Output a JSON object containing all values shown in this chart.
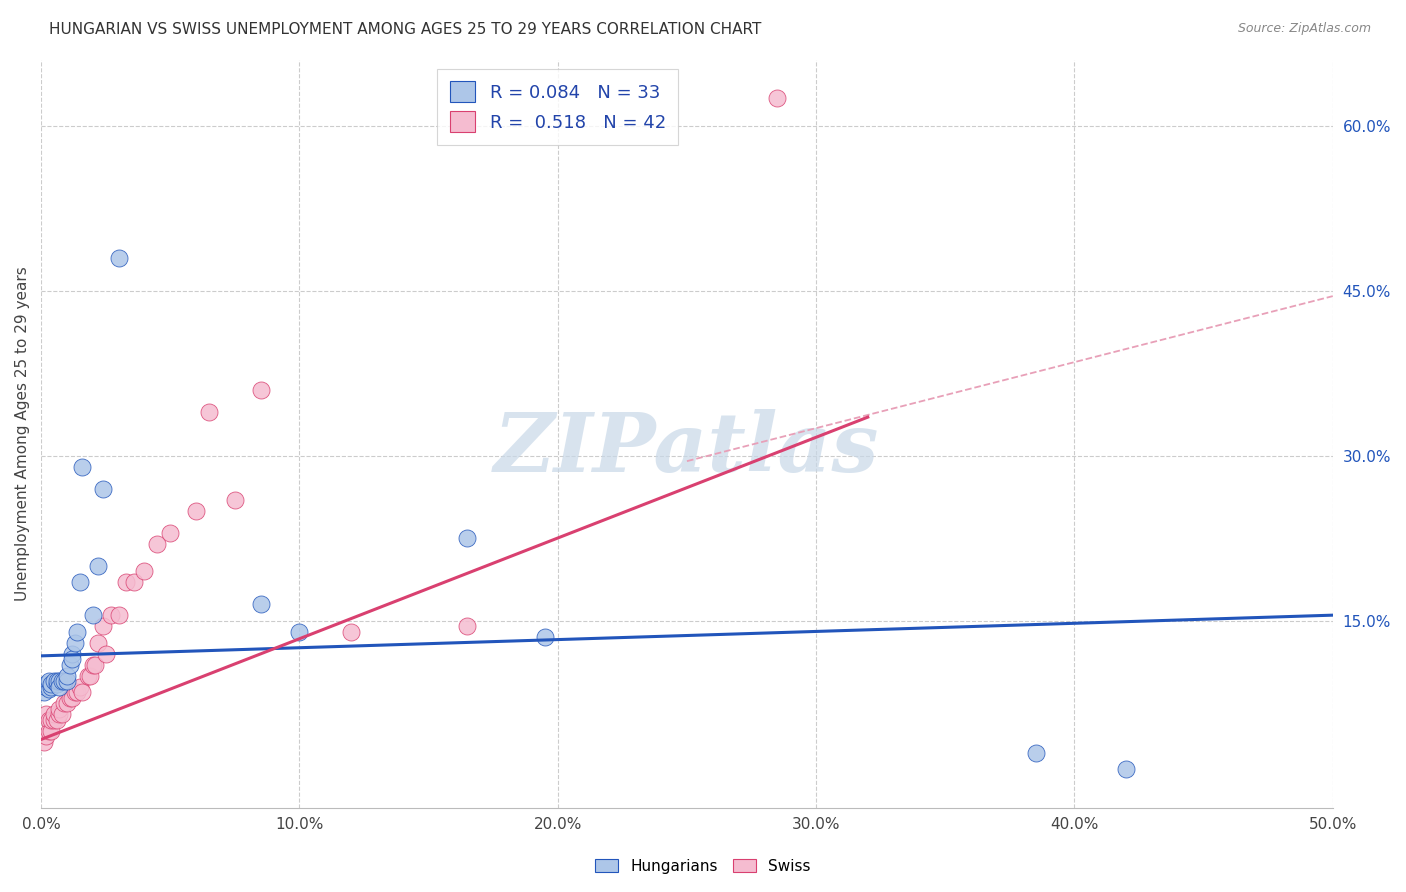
{
  "title": "HUNGARIAN VS SWISS UNEMPLOYMENT AMONG AGES 25 TO 29 YEARS CORRELATION CHART",
  "source": "Source: ZipAtlas.com",
  "ylabel": "Unemployment Among Ages 25 to 29 years",
  "right_yticks": [
    "60.0%",
    "45.0%",
    "30.0%",
    "15.0%"
  ],
  "right_ytick_vals": [
    0.6,
    0.45,
    0.3,
    0.15
  ],
  "legend_items": [
    "Hungarians",
    "Swiss"
  ],
  "hungarian_R": "0.084",
  "hungarian_N": "33",
  "swiss_R": "0.518",
  "swiss_N": "42",
  "hungarian_color": "#adc6e8",
  "swiss_color": "#f5bcd0",
  "hungarian_line_color": "#2255bb",
  "swiss_line_color": "#d94070",
  "dashed_line_color": "#e8a0b8",
  "watermark_color": "#c8d8e8",
  "xlim": [
    0.0,
    0.5
  ],
  "ylim": [
    -0.02,
    0.66
  ],
  "hungarian_x": [
    0.001,
    0.002,
    0.002,
    0.003,
    0.003,
    0.004,
    0.004,
    0.005,
    0.006,
    0.006,
    0.007,
    0.007,
    0.008,
    0.009,
    0.01,
    0.01,
    0.011,
    0.012,
    0.012,
    0.013,
    0.014,
    0.015,
    0.016,
    0.02,
    0.022,
    0.024,
    0.03,
    0.085,
    0.1,
    0.165,
    0.195,
    0.385,
    0.42
  ],
  "hungarian_y": [
    0.085,
    0.09,
    0.092,
    0.088,
    0.095,
    0.09,
    0.092,
    0.095,
    0.092,
    0.095,
    0.095,
    0.09,
    0.095,
    0.095,
    0.095,
    0.1,
    0.11,
    0.12,
    0.115,
    0.13,
    0.14,
    0.185,
    0.29,
    0.155,
    0.2,
    0.27,
    0.48,
    0.165,
    0.14,
    0.225,
    0.135,
    0.03,
    0.015
  ],
  "swiss_x": [
    0.001,
    0.002,
    0.002,
    0.003,
    0.003,
    0.004,
    0.004,
    0.005,
    0.005,
    0.006,
    0.007,
    0.007,
    0.008,
    0.009,
    0.01,
    0.011,
    0.012,
    0.013,
    0.014,
    0.015,
    0.016,
    0.018,
    0.019,
    0.02,
    0.021,
    0.022,
    0.024,
    0.025,
    0.027,
    0.03,
    0.033,
    0.036,
    0.04,
    0.045,
    0.05,
    0.06,
    0.065,
    0.075,
    0.085,
    0.12,
    0.165,
    0.285
  ],
  "swiss_y": [
    0.04,
    0.045,
    0.065,
    0.05,
    0.06,
    0.05,
    0.06,
    0.06,
    0.065,
    0.06,
    0.065,
    0.07,
    0.065,
    0.075,
    0.075,
    0.08,
    0.08,
    0.085,
    0.085,
    0.09,
    0.085,
    0.1,
    0.1,
    0.11,
    0.11,
    0.13,
    0.145,
    0.12,
    0.155,
    0.155,
    0.185,
    0.185,
    0.195,
    0.22,
    0.23,
    0.25,
    0.34,
    0.26,
    0.36,
    0.14,
    0.145,
    0.625
  ],
  "hun_line_x0": 0.0,
  "hun_line_x1": 0.5,
  "hun_line_y0": 0.118,
  "hun_line_y1": 0.155,
  "swi_line_x0": 0.0,
  "swi_line_x1": 0.32,
  "swi_line_y0": 0.042,
  "swi_line_y1": 0.335,
  "dash_line_x0": 0.25,
  "dash_line_x1": 0.5,
  "dash_line_y0": 0.295,
  "dash_line_y1": 0.445
}
